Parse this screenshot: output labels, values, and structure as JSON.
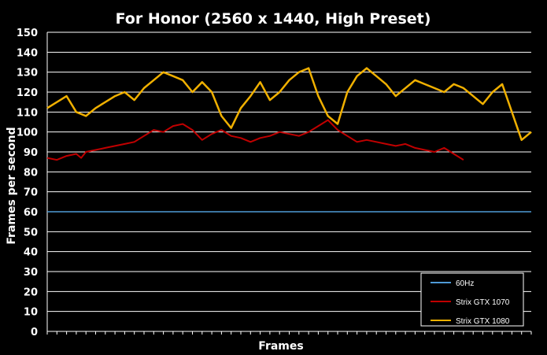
{
  "chart_data": {
    "type": "line",
    "title": "For Honor (2560 x 1440, High Preset)",
    "xlabel": "Frames",
    "ylabel": "Frames per second",
    "ylim": [
      0,
      150
    ],
    "yticks": [
      0,
      10,
      20,
      30,
      40,
      50,
      60,
      70,
      80,
      90,
      100,
      110,
      120,
      130,
      140,
      150
    ],
    "xlim": [
      0,
      1000
    ],
    "grid": true,
    "legend_position": "bottom-right",
    "series": [
      {
        "name": "60Hz",
        "color": "#4f9ad6",
        "x": [
          0,
          1000
        ],
        "values": [
          60,
          60
        ]
      },
      {
        "name": "Strix GTX 1070",
        "color": "#c00000",
        "x": [
          0,
          20,
          40,
          60,
          70,
          80,
          100,
          120,
          140,
          160,
          180,
          200,
          220,
          240,
          260,
          280,
          300,
          320,
          340,
          360,
          380,
          400,
          420,
          440,
          460,
          480,
          500,
          520,
          540,
          560,
          580,
          600,
          620,
          640,
          660,
          680,
          700,
          720,
          740,
          760,
          780,
          800,
          820,
          840,
          860
        ],
        "values": [
          87,
          86,
          88,
          89,
          87,
          90,
          91,
          92,
          93,
          94,
          95,
          98,
          101,
          100,
          103,
          104,
          101,
          96,
          99,
          101,
          98,
          97,
          95,
          97,
          98,
          100,
          99,
          98,
          100,
          103,
          106,
          101,
          98,
          95,
          96,
          95,
          94,
          93,
          94,
          92,
          91,
          90,
          92,
          89,
          86
        ]
      },
      {
        "name": "Strix GTX 1080",
        "color": "#f0b000",
        "x": [
          0,
          20,
          40,
          60,
          80,
          100,
          120,
          140,
          160,
          180,
          200,
          220,
          240,
          260,
          280,
          300,
          320,
          340,
          360,
          380,
          400,
          420,
          440,
          460,
          480,
          500,
          520,
          540,
          560,
          580,
          600,
          620,
          640,
          660,
          680,
          700,
          720,
          740,
          760,
          780,
          800,
          820,
          840,
          860,
          880,
          900,
          920,
          940,
          960,
          980,
          1000
        ],
        "values": [
          112,
          115,
          118,
          110,
          108,
          112,
          115,
          118,
          120,
          116,
          122,
          126,
          130,
          128,
          126,
          120,
          125,
          120,
          108,
          102,
          112,
          118,
          125,
          116,
          120,
          126,
          130,
          132,
          118,
          108,
          104,
          120,
          128,
          132,
          128,
          124,
          118,
          122,
          126,
          124,
          122,
          120,
          124,
          122,
          118,
          114,
          120,
          124,
          110,
          96,
          100
        ]
      }
    ]
  }
}
